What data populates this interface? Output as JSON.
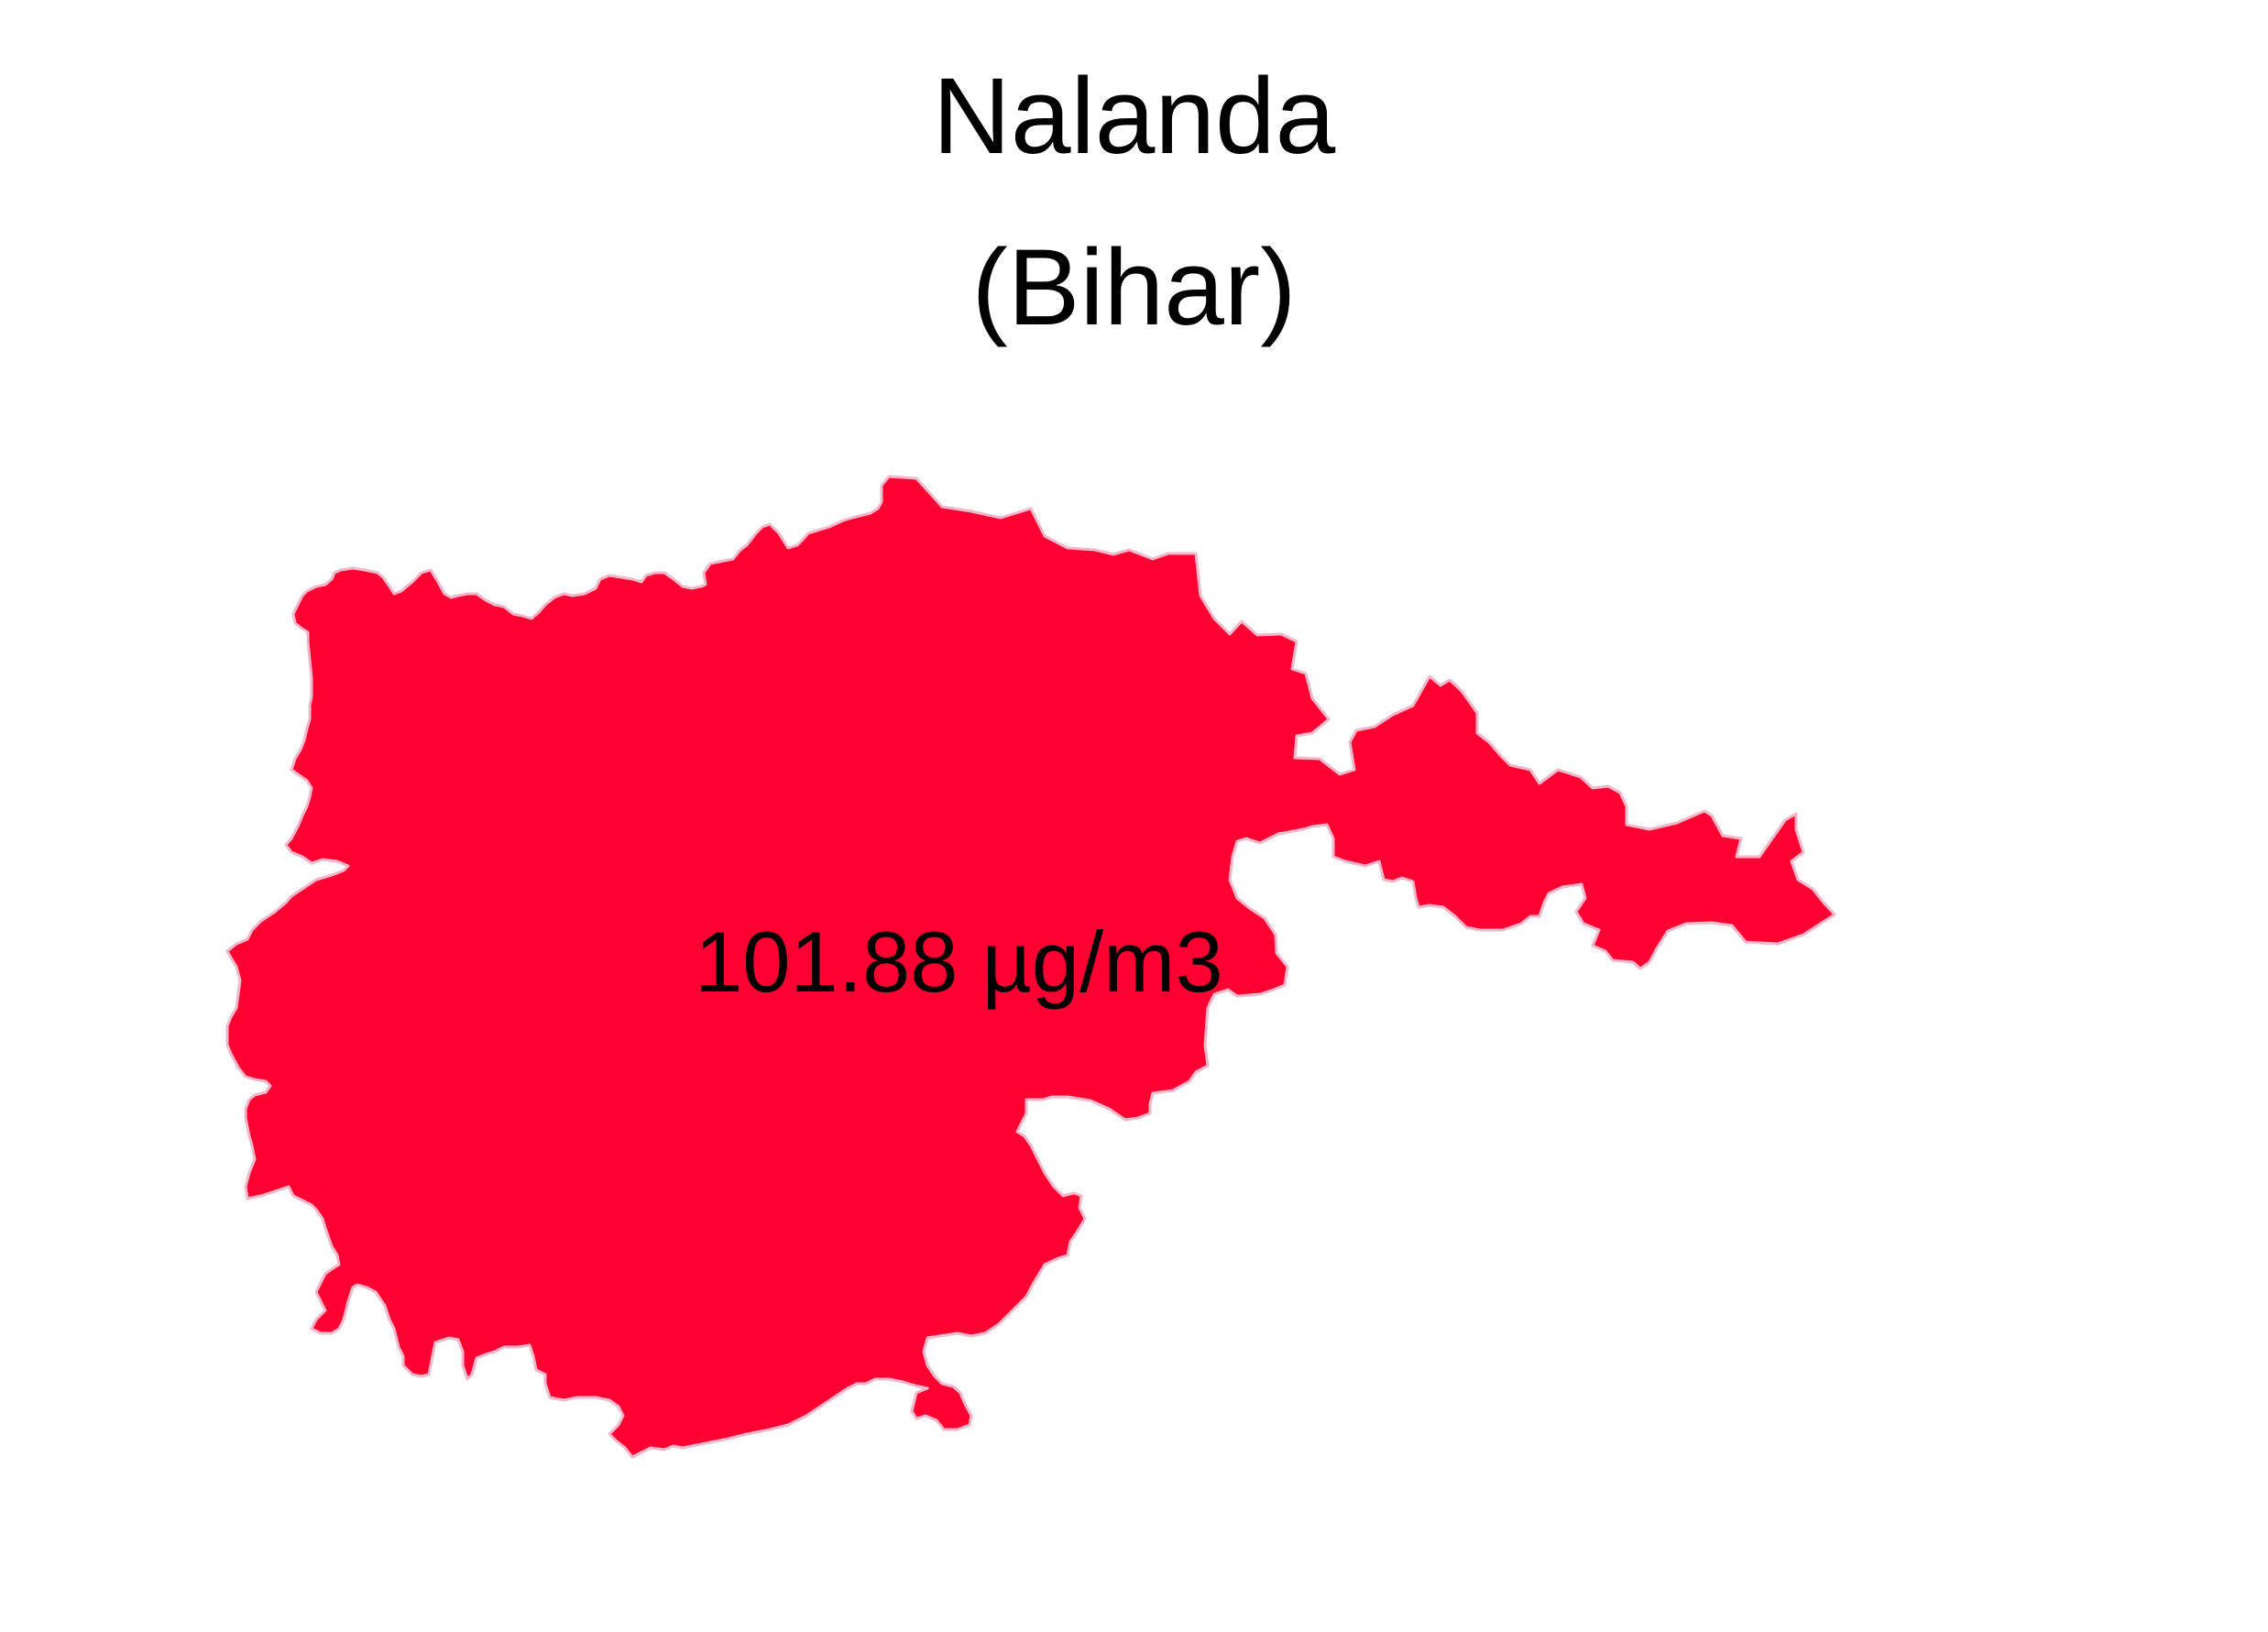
{
  "map": {
    "district": "Nalanda",
    "state": "(Bihar)",
    "value_label": "101.88 µg/m3",
    "fill_color": "#FF0033",
    "stroke_color": "#F4B6C8",
    "background_color": "#FFFFFF"
  }
}
